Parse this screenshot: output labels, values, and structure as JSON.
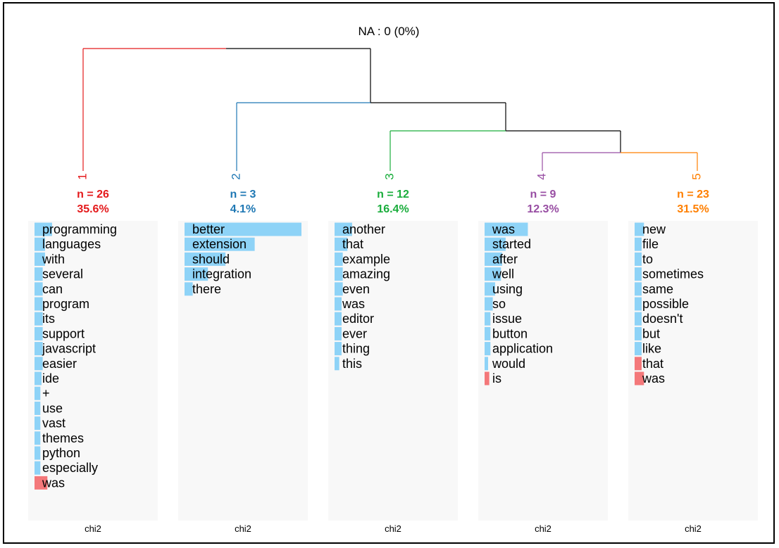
{
  "chart_data": {
    "type": "dendrogram-bar",
    "title": "NA : 0 (0%)",
    "metric_label": "chi2",
    "colors": {
      "positive_bar": "#8ed3f7",
      "negative_bar": "#f4787a",
      "panel_background": "#f8f8f8",
      "tree_line": "#000000"
    },
    "clusters": [
      {
        "id": "1",
        "n_label": "n = 26",
        "pct_label": "35.6%",
        "color": "#e41a1c",
        "words": [
          {
            "term": "programming",
            "value": 0.15,
            "sign": "positive"
          },
          {
            "term": "languages",
            "value": 0.09,
            "sign": "positive"
          },
          {
            "term": "with",
            "value": 0.09,
            "sign": "positive"
          },
          {
            "term": "several",
            "value": 0.07,
            "sign": "positive"
          },
          {
            "term": "can",
            "value": 0.07,
            "sign": "positive"
          },
          {
            "term": "program",
            "value": 0.07,
            "sign": "positive"
          },
          {
            "term": "its",
            "value": 0.07,
            "sign": "positive"
          },
          {
            "term": "support",
            "value": 0.07,
            "sign": "positive"
          },
          {
            "term": "javascript",
            "value": 0.07,
            "sign": "positive"
          },
          {
            "term": "easier",
            "value": 0.07,
            "sign": "positive"
          },
          {
            "term": "ide",
            "value": 0.06,
            "sign": "positive"
          },
          {
            "term": "+",
            "value": 0.05,
            "sign": "positive"
          },
          {
            "term": "use",
            "value": 0.05,
            "sign": "positive"
          },
          {
            "term": "vast",
            "value": 0.05,
            "sign": "positive"
          },
          {
            "term": "themes",
            "value": 0.05,
            "sign": "positive"
          },
          {
            "term": "python",
            "value": 0.05,
            "sign": "positive"
          },
          {
            "term": "especially",
            "value": 0.05,
            "sign": "positive"
          },
          {
            "term": "was",
            "value": 0.11,
            "sign": "negative"
          }
        ]
      },
      {
        "id": "2",
        "n_label": "n = 3",
        "pct_label": "4.1%",
        "color": "#1f78b4",
        "words": [
          {
            "term": "better",
            "value": 1.0,
            "sign": "positive"
          },
          {
            "term": "extension",
            "value": 0.6,
            "sign": "positive"
          },
          {
            "term": "should",
            "value": 0.35,
            "sign": "positive"
          },
          {
            "term": "integration",
            "value": 0.2,
            "sign": "positive"
          },
          {
            "term": "there",
            "value": 0.07,
            "sign": "positive"
          }
        ]
      },
      {
        "id": "3",
        "n_label": "n = 12",
        "pct_label": "16.4%",
        "color": "#1aad3c",
        "words": [
          {
            "term": "another",
            "value": 0.15,
            "sign": "positive"
          },
          {
            "term": "that",
            "value": 0.11,
            "sign": "positive"
          },
          {
            "term": "example",
            "value": 0.07,
            "sign": "positive"
          },
          {
            "term": "amazing",
            "value": 0.07,
            "sign": "positive"
          },
          {
            "term": "even",
            "value": 0.07,
            "sign": "positive"
          },
          {
            "term": "was",
            "value": 0.06,
            "sign": "positive"
          },
          {
            "term": "editor",
            "value": 0.06,
            "sign": "positive"
          },
          {
            "term": "ever",
            "value": 0.06,
            "sign": "positive"
          },
          {
            "term": "thing",
            "value": 0.06,
            "sign": "positive"
          },
          {
            "term": "this",
            "value": 0.04,
            "sign": "positive"
          }
        ]
      },
      {
        "id": "4",
        "n_label": "n = 9",
        "pct_label": "12.3%",
        "color": "#984ea3",
        "words": [
          {
            "term": "was",
            "value": 0.37,
            "sign": "positive"
          },
          {
            "term": "started",
            "value": 0.18,
            "sign": "positive"
          },
          {
            "term": "after",
            "value": 0.15,
            "sign": "positive"
          },
          {
            "term": "well",
            "value": 0.14,
            "sign": "positive"
          },
          {
            "term": "using",
            "value": 0.09,
            "sign": "positive"
          },
          {
            "term": "so",
            "value": 0.07,
            "sign": "positive"
          },
          {
            "term": "issue",
            "value": 0.05,
            "sign": "positive"
          },
          {
            "term": "button",
            "value": 0.05,
            "sign": "positive"
          },
          {
            "term": "application",
            "value": 0.05,
            "sign": "positive"
          },
          {
            "term": "would",
            "value": 0.03,
            "sign": "positive"
          },
          {
            "term": "is",
            "value": 0.04,
            "sign": "negative"
          }
        ]
      },
      {
        "id": "5",
        "n_label": "n = 23",
        "pct_label": "31.5%",
        "color": "#ff7f00",
        "words": [
          {
            "term": "new",
            "value": 0.08,
            "sign": "positive"
          },
          {
            "term": "file",
            "value": 0.06,
            "sign": "positive"
          },
          {
            "term": "to",
            "value": 0.06,
            "sign": "positive"
          },
          {
            "term": "sometimes",
            "value": 0.06,
            "sign": "positive"
          },
          {
            "term": "same",
            "value": 0.06,
            "sign": "positive"
          },
          {
            "term": "possible",
            "value": 0.06,
            "sign": "positive"
          },
          {
            "term": "doesn't",
            "value": 0.06,
            "sign": "positive"
          },
          {
            "term": "but",
            "value": 0.06,
            "sign": "positive"
          },
          {
            "term": "like",
            "value": 0.06,
            "sign": "positive"
          },
          {
            "term": "that",
            "value": 0.06,
            "sign": "negative"
          },
          {
            "term": "was",
            "value": 0.08,
            "sign": "negative"
          }
        ]
      }
    ]
  }
}
